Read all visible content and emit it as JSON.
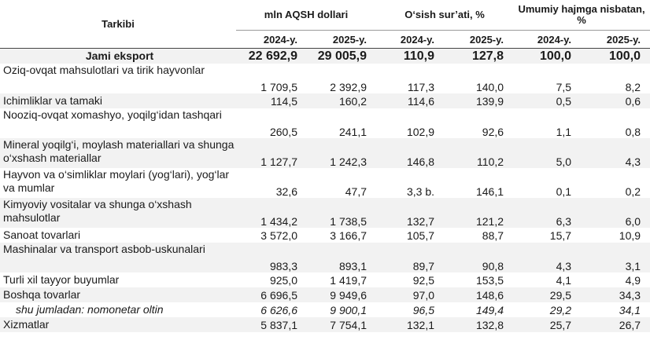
{
  "header": {
    "label_col": "Tarkibi",
    "group_value": "mln AQSH dollari",
    "group_growth": "O‘sish sur’ati, %",
    "group_share": "Umumiy hajmga nisbatan, %",
    "year_2024": "2024-y.",
    "year_2025": "2025-y."
  },
  "total": {
    "label": "Jami eksport",
    "v2024": "22 692,9",
    "v2025": "29 005,9",
    "g2024": "110,9",
    "g2025": "127,8",
    "s2024": "100,0",
    "s2025": "100,0"
  },
  "rows": [
    {
      "label": "Oziq-ovqat mahsulotlari va tirik hayvonlar",
      "v2024": "1 709,5",
      "v2025": "2 392,9",
      "g2024": "117,3",
      "g2025": "140,0",
      "s2024": "7,5",
      "s2025": "8,2"
    },
    {
      "label": "Ichimliklar va tamaki",
      "v2024": "114,5",
      "v2025": "160,2",
      "g2024": "114,6",
      "g2025": "139,9",
      "s2024": "0,5",
      "s2025": "0,6"
    },
    {
      "label": "Nooziq-ovqat xomashyo, yoqilg‘idan tashqari",
      "v2024": "260,5",
      "v2025": "241,1",
      "g2024": "102,9",
      "g2025": "92,6",
      "s2024": "1,1",
      "s2025": "0,8"
    },
    {
      "label": "Mineral yoqilg‘i, moylash materiallari va shunga o‘xshash materiallar",
      "v2024": "1 127,7",
      "v2025": "1 242,3",
      "g2024": "146,8",
      "g2025": "110,2",
      "s2024": "5,0",
      "s2025": "4,3"
    },
    {
      "label": "Hayvon va o‘simliklar moylari (yog‘lari), yog‘lar va mumlar",
      "v2024": "32,6",
      "v2025": "47,7",
      "g2024": "3,3 b.",
      "g2025": "146,1",
      "s2024": "0,1",
      "s2025": "0,2"
    },
    {
      "label": "Kimyoviy vositalar va shunga o‘xshash mahsulotlar",
      "v2024": "1 434,2",
      "v2025": "1 738,5",
      "g2024": "132,7",
      "g2025": "121,2",
      "s2024": "6,3",
      "s2025": "6,0"
    },
    {
      "label": "Sanoat tovarlari",
      "v2024": "3 572,0",
      "v2025": "3 166,7",
      "g2024": "105,7",
      "g2025": "88,7",
      "s2024": "15,7",
      "s2025": "10,9"
    },
    {
      "label": "Mashinalar va transport asbob-uskunalari",
      "v2024": "983,3",
      "v2025": "893,1",
      "g2024": "89,7",
      "g2025": "90,8",
      "s2024": "4,3",
      "s2025": "3,1"
    },
    {
      "label": "Turli xil tayyor buyumlar",
      "v2024": "925,0",
      "v2025": "1 419,7",
      "g2024": "92,5",
      "g2025": "153,5",
      "s2024": "4,1",
      "s2025": "4,9"
    },
    {
      "label": "Boshqa tovarlar",
      "v2024": "6 696,5",
      "v2025": "9 949,6",
      "g2024": "97,0",
      "g2025": "148,6",
      "s2024": "29,5",
      "s2025": "34,3"
    },
    {
      "label": "shu jumladan: nomonetar oltin",
      "v2024": "6 626,6",
      "v2025": "9 900,1",
      "g2024": "96,5",
      "g2025": "149,4",
      "s2024": "29,2",
      "s2025": "34,1"
    },
    {
      "label": "Xizmatlar",
      "v2024": "5 837,1",
      "v2025": "7 754,1",
      "g2024": "132,1",
      "g2025": "132,8",
      "s2024": "25,7",
      "s2025": "26,7"
    }
  ]
}
